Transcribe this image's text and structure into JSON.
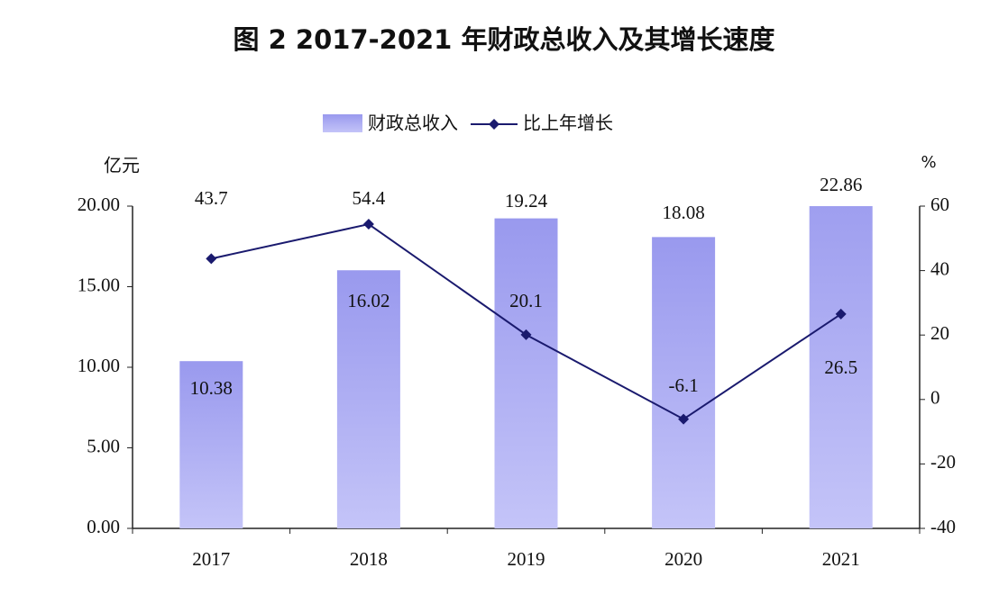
{
  "chart_data": {
    "type": "bar_line",
    "title": "图 2 2017-2021 年财政总收入及其增长速度",
    "y_label": "亿元",
    "y2_label": "%",
    "categories": [
      "2017",
      "2018",
      "2019",
      "2020",
      "2021"
    ],
    "series": [
      {
        "name": "财政总收入",
        "type": "bar",
        "color": "#9b9bf0",
        "values": [
          10.38,
          16.02,
          19.24,
          18.08,
          22.86
        ]
      },
      {
        "name": "比上年增长",
        "type": "line",
        "axis": "y2",
        "color": "#1a1a6e",
        "values": [
          43.7,
          54.4,
          20.1,
          -6.1,
          26.5
        ]
      }
    ],
    "ylim": [
      0,
      20
    ],
    "yticks": [
      {
        "value": 0,
        "label": "0.00"
      },
      {
        "value": 5,
        "label": "5.00"
      },
      {
        "value": 10,
        "label": "10.00"
      },
      {
        "value": 15,
        "label": "15.00"
      },
      {
        "value": 20,
        "label": "20.00"
      }
    ],
    "y2lim": [
      -40,
      60
    ],
    "y2ticks": [
      -40,
      -20,
      0,
      20,
      40,
      60
    ],
    "legend": "top",
    "grid": false
  }
}
